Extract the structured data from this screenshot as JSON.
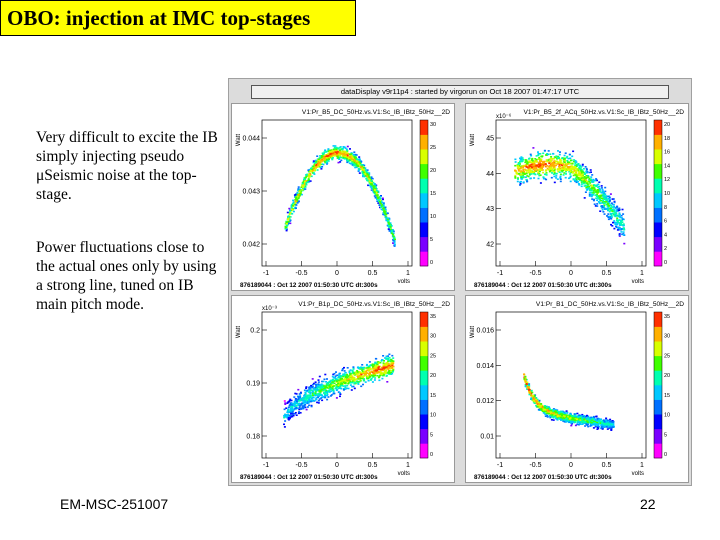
{
  "slide": {
    "title": "OBO: injection at IMC top-stages",
    "paragraph1": "Very difficult to excite the IB simply injecting pseudo μSeismic noise at the top-stage.",
    "paragraph2": "Power fluctuations close to the actual ones only by using a strong line, tuned on IB main pitch mode.",
    "footer_left": "EM-MSC-251007",
    "page_number": "22"
  },
  "display": {
    "header": "dataDisplay v9r11p4 : started by virgorun on Oct 18 2007 01:47:17 UTC",
    "panels": [
      {
        "title": "V1:Pr_B5_DC_50Hz.vs.V1:Sc_IB_IBtz_50Hz__2D",
        "ylabel": "Watt",
        "xlabel": "volts",
        "y_ticks": [
          "0.044",
          "0.043",
          "0.042"
        ],
        "x_ticks": [
          "-1",
          "-0.5",
          "0",
          "0.5",
          "1"
        ],
        "y_exponent": "",
        "z_ticks": [
          "30",
          "25",
          "20",
          "15",
          "10",
          "5",
          "0"
        ],
        "footer": "876189044 : Oct 12 2007 01:50:30 UTC dt:300s",
        "shape": "arch"
      },
      {
        "title": "V1:Pr_B5_2f_ACq_50Hz.vs.V1:Sc_IB_IBtz_50Hz__2D",
        "ylabel": "Watt",
        "xlabel": "volts",
        "y_ticks": [
          "45",
          "44",
          "43",
          "42"
        ],
        "x_ticks": [
          "-1",
          "-0.5",
          "0",
          "0.5",
          "1"
        ],
        "y_exponent": "x10⁻⁶",
        "z_ticks": [
          "20",
          "18",
          "16",
          "14",
          "12",
          "10",
          "8",
          "6",
          "4",
          "2",
          "0"
        ],
        "footer": "876189044 : Oct 12 2007 01:50:30 UTC dt:300s",
        "shape": "cloud"
      },
      {
        "title": "V1:Pr_B1p_DC_50Hz.vs.V1:Sc_IB_IBtz_50Hz__2D",
        "ylabel": "Watt",
        "xlabel": "volts",
        "y_ticks": [
          "0.2",
          "0.19",
          "0.18"
        ],
        "x_ticks": [
          "-1",
          "-0.5",
          "0",
          "0.5",
          "1"
        ],
        "y_exponent": "x10⁻³",
        "z_ticks": [
          "35",
          "30",
          "25",
          "20",
          "15",
          "10",
          "5",
          "0"
        ],
        "footer": "876189044 : Oct 12 2007 01:50:30 UTC dt:300s",
        "shape": "rise"
      },
      {
        "title": "V1:Pr_B1_DC_50Hz.vs.V1:Sc_IB_IBtz_50Hz__2D",
        "ylabel": "Watt",
        "xlabel": "volts",
        "y_ticks": [
          "0.016",
          "0.014",
          "0.012",
          "0.01"
        ],
        "x_ticks": [
          "-1",
          "-0.5",
          "0",
          "0.5",
          "1"
        ],
        "y_exponent": "",
        "z_ticks": [
          "35",
          "30",
          "25",
          "20",
          "15",
          "10",
          "5",
          "0"
        ],
        "footer": "876189044 : Oct 12 2007 01:50:30 UTC dt:300s",
        "shape": "decay"
      }
    ]
  }
}
